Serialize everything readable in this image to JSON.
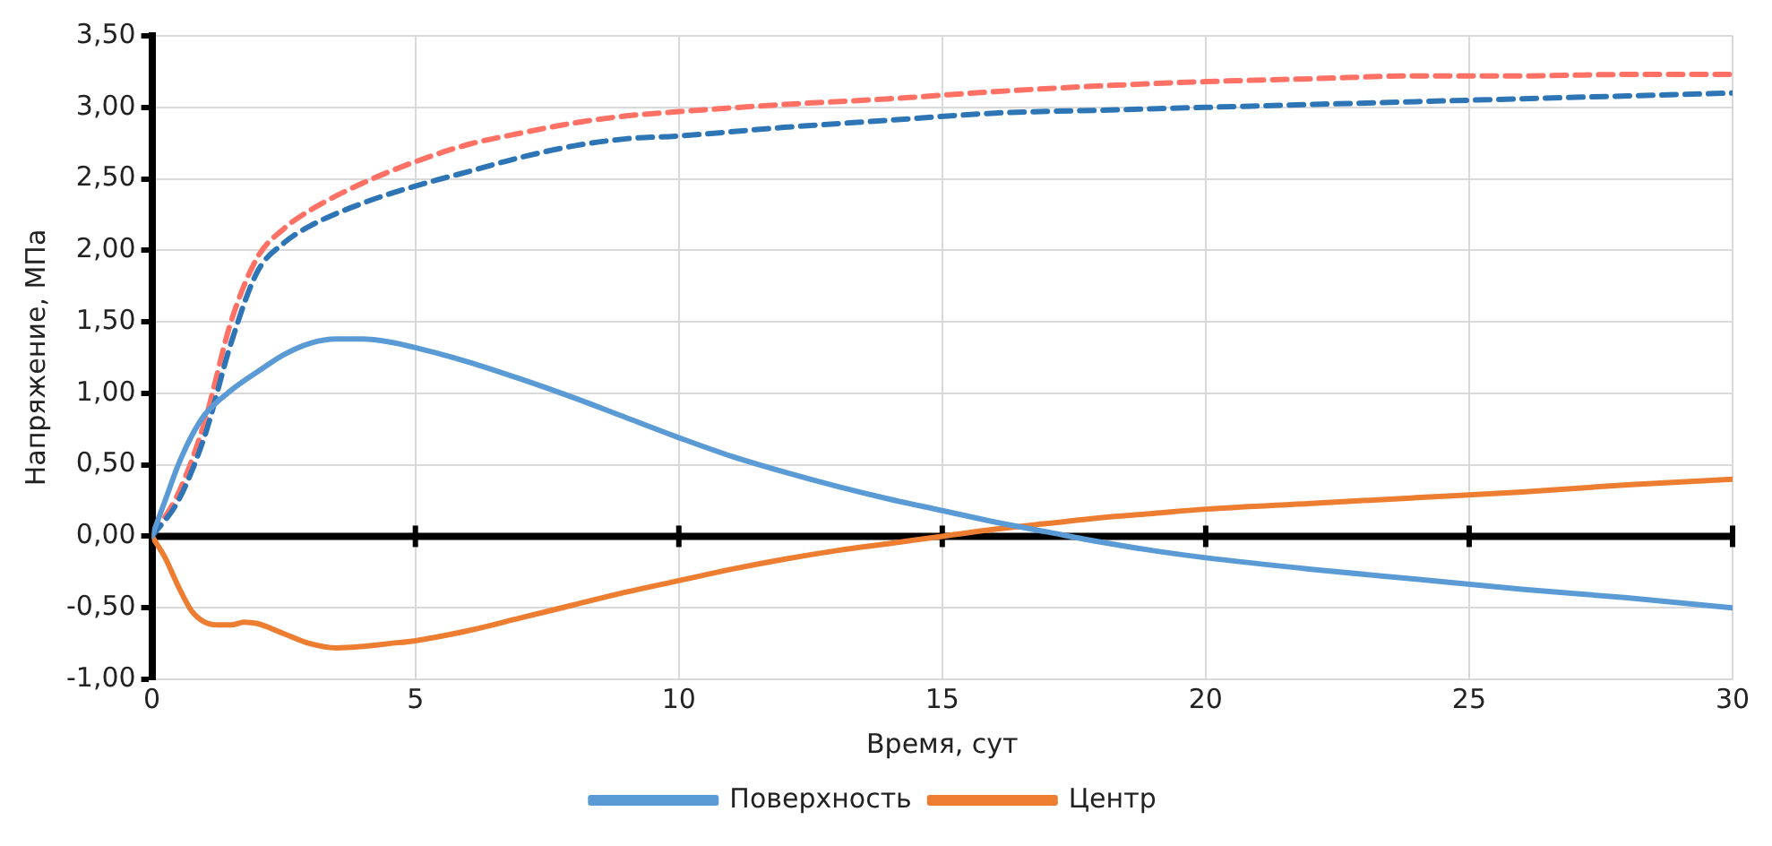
{
  "chart_data": {
    "type": "line",
    "xlabel": "Время, сут",
    "ylabel": "Напряжение, МПа",
    "xlim": [
      0,
      30
    ],
    "xticks": [
      0,
      5,
      10,
      15,
      20,
      25,
      30
    ],
    "ylim": [
      -1,
      3.5
    ],
    "yticks": [
      {
        "value": -1,
        "label": "-1,00"
      },
      {
        "value": -0.5,
        "label": "-0,50"
      },
      {
        "value": 0,
        "label": "0,00"
      },
      {
        "value": 0.5,
        "label": "0,50"
      },
      {
        "value": 1,
        "label": "1,00"
      },
      {
        "value": 1.5,
        "label": "1,50"
      },
      {
        "value": 2,
        "label": "2,00"
      },
      {
        "value": 2.5,
        "label": "2,50"
      },
      {
        "value": 3,
        "label": "3,00"
      },
      {
        "value": 3.5,
        "label": "3,50"
      }
    ],
    "grid": true,
    "legend": "bottom",
    "marker": "none",
    "series": [
      {
        "name": "Поверхность",
        "color": "#5b9bd5",
        "line_style": "solid",
        "x": [
          0,
          0.25,
          0.5,
          0.75,
          1,
          1.5,
          2,
          2.5,
          3,
          3.5,
          4,
          4.5,
          5,
          6,
          7,
          8,
          9,
          10,
          11,
          12,
          13,
          14,
          15,
          16,
          17,
          18,
          19,
          20,
          22,
          24,
          26,
          28,
          30
        ],
        "values": [
          0,
          0.25,
          0.5,
          0.7,
          0.85,
          1.02,
          1.15,
          1.27,
          1.35,
          1.38,
          1.38,
          1.36,
          1.32,
          1.22,
          1.1,
          0.97,
          0.83,
          0.69,
          0.56,
          0.45,
          0.35,
          0.26,
          0.18,
          0.1,
          0.03,
          -0.04,
          -0.1,
          -0.15,
          -0.23,
          -0.3,
          -0.37,
          -0.43,
          -0.5
        ]
      },
      {
        "name": "Центр",
        "color": "#ed7d31",
        "line_style": "solid",
        "x": [
          0,
          0.25,
          0.5,
          0.75,
          1,
          1.25,
          1.5,
          1.75,
          2,
          2.5,
          3,
          3.5,
          4,
          4.5,
          5,
          6,
          7,
          8,
          9,
          10,
          11,
          12,
          13,
          14,
          15,
          16,
          17,
          18,
          19,
          20,
          22,
          24,
          26,
          28,
          30
        ],
        "values": [
          0,
          -0.15,
          -0.35,
          -0.52,
          -0.6,
          -0.62,
          -0.62,
          -0.6,
          -0.61,
          -0.68,
          -0.75,
          -0.78,
          -0.77,
          -0.75,
          -0.73,
          -0.66,
          -0.57,
          -0.48,
          -0.39,
          -0.31,
          -0.23,
          -0.16,
          -0.1,
          -0.05,
          0,
          0.05,
          0.09,
          0.13,
          0.16,
          0.19,
          0.23,
          0.27,
          0.31,
          0.36,
          0.4
        ]
      },
      {
        "color": "#2e75b6",
        "line_style": "dashed",
        "x": [
          0,
          0.5,
          1,
          1.5,
          2,
          2.5,
          3,
          4,
          5,
          6,
          7,
          8,
          9,
          10,
          12,
          14,
          16,
          18,
          20,
          22,
          24,
          26,
          28,
          30
        ],
        "values": [
          0,
          0.25,
          0.7,
          1.35,
          1.85,
          2.05,
          2.17,
          2.33,
          2.45,
          2.55,
          2.65,
          2.73,
          2.78,
          2.8,
          2.86,
          2.91,
          2.96,
          2.98,
          3,
          3.02,
          3.04,
          3.06,
          3.08,
          3.1
        ]
      },
      {
        "color": "#ff7065",
        "line_style": "dashed",
        "x": [
          0,
          0.5,
          1,
          1.5,
          2,
          2.5,
          3,
          4,
          5,
          6,
          7,
          8,
          9,
          10,
          12,
          14,
          16,
          18,
          20,
          22,
          24,
          26,
          28,
          30
        ],
        "values": [
          0,
          0.3,
          0.8,
          1.5,
          1.95,
          2.15,
          2.28,
          2.47,
          2.62,
          2.74,
          2.82,
          2.89,
          2.94,
          2.97,
          3.02,
          3.06,
          3.11,
          3.15,
          3.18,
          3.2,
          3.22,
          3.22,
          3.23,
          3.23
        ]
      }
    ]
  }
}
